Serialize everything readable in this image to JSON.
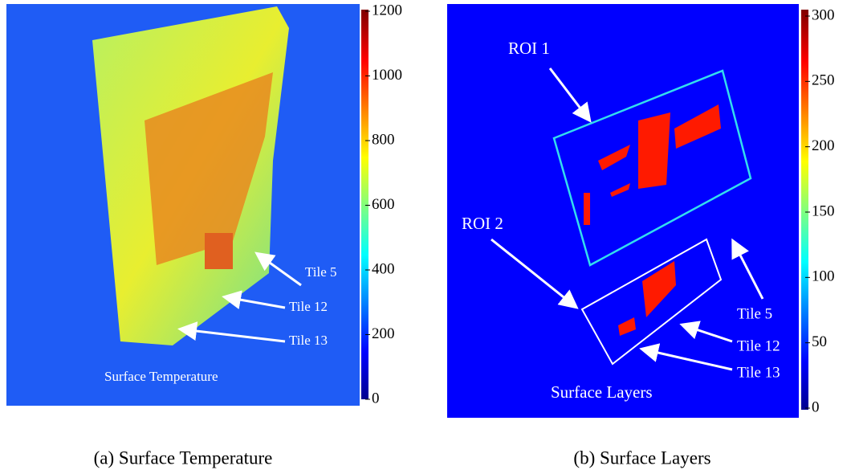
{
  "panels": [
    {
      "label": "Surface Temperature",
      "caption": "(a) Surface Temperature",
      "colorbar": {
        "ticks": [
          0,
          200,
          400,
          600,
          800,
          1000,
          1200
        ]
      },
      "annotations": [
        "Tile 5",
        "Tile 12",
        "Tile 13"
      ]
    },
    {
      "label": "Surface Layers",
      "caption": "(b) Surface Layers",
      "colorbar": {
        "ticks": [
          0,
          50,
          100,
          150,
          200,
          250,
          300
        ]
      },
      "annotations": [
        "ROI 1",
        "ROI 2",
        "Tile 5",
        "Tile 12",
        "Tile 13"
      ]
    }
  ]
}
